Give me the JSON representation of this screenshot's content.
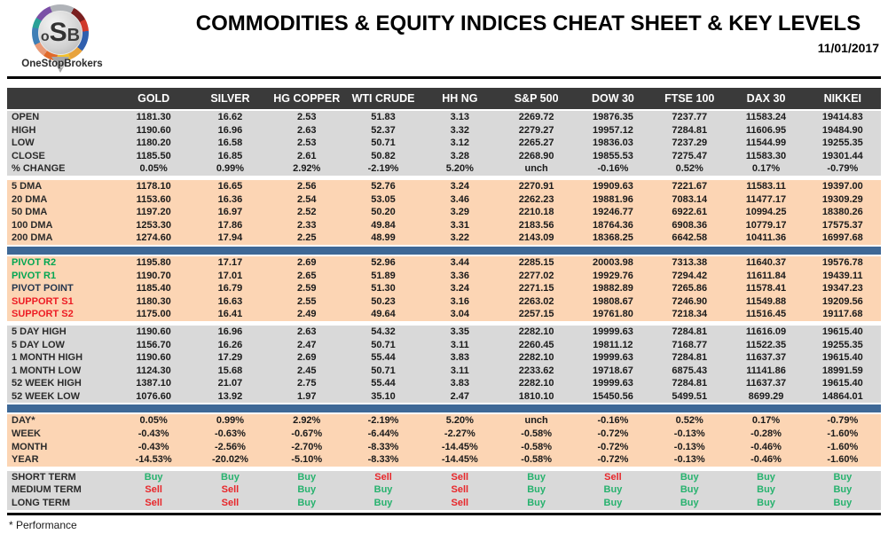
{
  "header": {
    "logo": {
      "letters": [
        "o",
        "S",
        "B"
      ],
      "brand": "OneStopBrokers"
    },
    "title": "COMMODITIES & EQUITY INDICES CHEAT SHEET & KEY LEVELS",
    "date": "11/01/2017"
  },
  "table": {
    "columns": [
      "GOLD",
      "SILVER",
      "HG COPPER",
      "WTI CRUDE",
      "HH NG",
      "S&P 500",
      "DOW 30",
      "FTSE 100",
      "DAX 30",
      "NIKKEI"
    ],
    "sections": [
      {
        "name": "ohlc",
        "theme": "gray",
        "dividers_before": [],
        "rows": [
          {
            "label": "OPEN",
            "values": [
              "1181.30",
              "16.62",
              "2.53",
              "51.83",
              "3.13",
              "2269.72",
              "19876.35",
              "7237.77",
              "11583.24",
              "19414.83"
            ]
          },
          {
            "label": "HIGH",
            "values": [
              "1190.60",
              "16.96",
              "2.63",
              "52.37",
              "3.32",
              "2279.27",
              "19957.12",
              "7284.81",
              "11606.95",
              "19484.90"
            ]
          },
          {
            "label": "LOW",
            "values": [
              "1180.20",
              "16.58",
              "2.53",
              "50.71",
              "3.12",
              "2265.27",
              "19836.03",
              "7237.29",
              "11544.99",
              "19255.35"
            ]
          },
          {
            "label": "CLOSE",
            "values": [
              "1185.50",
              "16.85",
              "2.61",
              "50.82",
              "3.28",
              "2268.90",
              "19855.53",
              "7275.47",
              "11583.30",
              "19301.44"
            ]
          },
          {
            "label": "% CHANGE",
            "values": [
              "0.05%",
              "0.99%",
              "2.92%",
              "-2.19%",
              "5.20%",
              "unch",
              "-0.16%",
              "0.52%",
              "0.17%",
              "-0.79%"
            ]
          }
        ]
      },
      {
        "name": "dma",
        "theme": "peach",
        "dividers_before": [
          "gap"
        ],
        "rows": [
          {
            "label": "5 DMA",
            "values": [
              "1178.10",
              "16.65",
              "2.56",
              "52.76",
              "3.24",
              "2270.91",
              "19909.63",
              "7221.67",
              "11583.11",
              "19397.00"
            ]
          },
          {
            "label": "20 DMA",
            "values": [
              "1153.60",
              "16.36",
              "2.54",
              "53.05",
              "3.46",
              "2262.23",
              "19881.96",
              "7083.14",
              "11477.17",
              "19309.29"
            ]
          },
          {
            "label": "50 DMA",
            "values": [
              "1197.20",
              "16.97",
              "2.52",
              "50.20",
              "3.29",
              "2210.18",
              "19246.77",
              "6922.61",
              "10994.25",
              "18380.26"
            ]
          },
          {
            "label": "100 DMA",
            "values": [
              "1253.30",
              "17.86",
              "2.33",
              "49.84",
              "3.31",
              "2183.56",
              "18764.36",
              "6908.36",
              "10779.17",
              "17575.37"
            ]
          },
          {
            "label": "200 DMA",
            "values": [
              "1274.60",
              "17.94",
              "2.25",
              "48.99",
              "3.22",
              "2143.09",
              "18368.25",
              "6642.58",
              "10411.36",
              "16997.68"
            ]
          }
        ]
      },
      {
        "name": "pivots",
        "theme": "peach",
        "dividers_before": [
          "gap1",
          "blue",
          "gap1"
        ],
        "rows": [
          {
            "label": "PIVOT R2",
            "label_color": "green",
            "values": [
              "1195.80",
              "17.17",
              "2.69",
              "52.96",
              "3.44",
              "2285.15",
              "20003.98",
              "7313.38",
              "11640.37",
              "19576.78"
            ]
          },
          {
            "label": "PIVOT R1",
            "label_color": "green",
            "values": [
              "1190.70",
              "17.01",
              "2.65",
              "51.89",
              "3.36",
              "2277.02",
              "19929.76",
              "7294.42",
              "11611.84",
              "19439.11"
            ]
          },
          {
            "label": "PIVOT POINT",
            "label_color": "navy",
            "values": [
              "1185.40",
              "16.79",
              "2.59",
              "51.30",
              "3.24",
              "2271.15",
              "19882.89",
              "7265.86",
              "11578.41",
              "19347.23"
            ]
          },
          {
            "label": "SUPPORT S1",
            "label_color": "red",
            "values": [
              "1180.30",
              "16.63",
              "2.55",
              "50.23",
              "3.16",
              "2263.02",
              "19808.67",
              "7246.90",
              "11549.88",
              "19209.56"
            ]
          },
          {
            "label": "SUPPORT S2",
            "label_color": "red",
            "values": [
              "1175.00",
              "16.41",
              "2.49",
              "49.64",
              "3.04",
              "2257.15",
              "19761.80",
              "7218.34",
              "11516.45",
              "19117.68"
            ]
          }
        ]
      },
      {
        "name": "ranges",
        "theme": "gray",
        "dividers_before": [
          "gap"
        ],
        "rows": [
          {
            "label": "5 DAY HIGH",
            "values": [
              "1190.60",
              "16.96",
              "2.63",
              "54.32",
              "3.35",
              "2282.10",
              "19999.63",
              "7284.81",
              "11616.09",
              "19615.40"
            ]
          },
          {
            "label": "5 DAY LOW",
            "values": [
              "1156.70",
              "16.26",
              "2.47",
              "50.71",
              "3.11",
              "2260.45",
              "19811.12",
              "7168.77",
              "11522.35",
              "19255.35"
            ]
          },
          {
            "label": "1 MONTH HIGH",
            "values": [
              "1190.60",
              "17.29",
              "2.69",
              "55.44",
              "3.83",
              "2282.10",
              "19999.63",
              "7284.81",
              "11637.37",
              "19615.40"
            ]
          },
          {
            "label": "1 MONTH LOW",
            "values": [
              "1124.30",
              "15.68",
              "2.45",
              "50.71",
              "3.11",
              "2233.62",
              "19718.67",
              "6875.43",
              "11141.86",
              "18991.59"
            ]
          },
          {
            "label": "52 WEEK HIGH",
            "values": [
              "1387.10",
              "21.07",
              "2.75",
              "55.44",
              "3.83",
              "2282.10",
              "19999.63",
              "7284.81",
              "11637.37",
              "19615.40"
            ]
          },
          {
            "label": "52 WEEK LOW",
            "values": [
              "1076.60",
              "13.92",
              "1.97",
              "35.10",
              "2.47",
              "1810.10",
              "15450.56",
              "5499.51",
              "8699.29",
              "14864.01"
            ]
          }
        ]
      },
      {
        "name": "performance",
        "theme": "peach",
        "dividers_before": [
          "gap1",
          "blue",
          "gap1"
        ],
        "rows": [
          {
            "label": "DAY*",
            "values": [
              "0.05%",
              "0.99%",
              "2.92%",
              "-2.19%",
              "5.20%",
              "unch",
              "-0.16%",
              "0.52%",
              "0.17%",
              "-0.79%"
            ]
          },
          {
            "label": "WEEK",
            "values": [
              "-0.43%",
              "-0.63%",
              "-0.67%",
              "-6.44%",
              "-2.27%",
              "-0.58%",
              "-0.72%",
              "-0.13%",
              "-0.28%",
              "-1.60%"
            ]
          },
          {
            "label": "MONTH",
            "values": [
              "-0.43%",
              "-2.56%",
              "-2.70%",
              "-8.33%",
              "-14.45%",
              "-0.58%",
              "-0.72%",
              "-0.13%",
              "-0.46%",
              "-1.60%"
            ]
          },
          {
            "label": "YEAR",
            "values": [
              "-14.53%",
              "-20.02%",
              "-5.10%",
              "-8.33%",
              "-14.45%",
              "-0.58%",
              "-0.72%",
              "-0.13%",
              "-0.46%",
              "-1.60%"
            ]
          }
        ]
      },
      {
        "name": "signals",
        "theme": "gray",
        "signal_cells": true,
        "dividers_before": [
          "gap"
        ],
        "rows": [
          {
            "label": "SHORT TERM",
            "values": [
              "Buy",
              "Buy",
              "Buy",
              "Sell",
              "Sell",
              "Buy",
              "Sell",
              "Buy",
              "Buy",
              "Buy"
            ]
          },
          {
            "label": "MEDIUM TERM",
            "values": [
              "Sell",
              "Sell",
              "Buy",
              "Buy",
              "Sell",
              "Buy",
              "Buy",
              "Buy",
              "Buy",
              "Buy"
            ]
          },
          {
            "label": "LONG TERM",
            "values": [
              "Sell",
              "Sell",
              "Buy",
              "Buy",
              "Sell",
              "Buy",
              "Buy",
              "Buy",
              "Buy",
              "Buy"
            ]
          }
        ]
      }
    ]
  },
  "footer": {
    "note": "* Performance"
  },
  "colors": {
    "header_dark": "#3a3a3a",
    "section_gray": "#d9d9d9",
    "section_peach": "#fcd5b4",
    "divider_blue": "#3e6896",
    "buy_green": "#27b26e",
    "sell_red": "#e8262a",
    "pivot_label_green": "#00a651",
    "support_label_red": "#ed1c24",
    "pivot_point_navy": "#24364f"
  }
}
